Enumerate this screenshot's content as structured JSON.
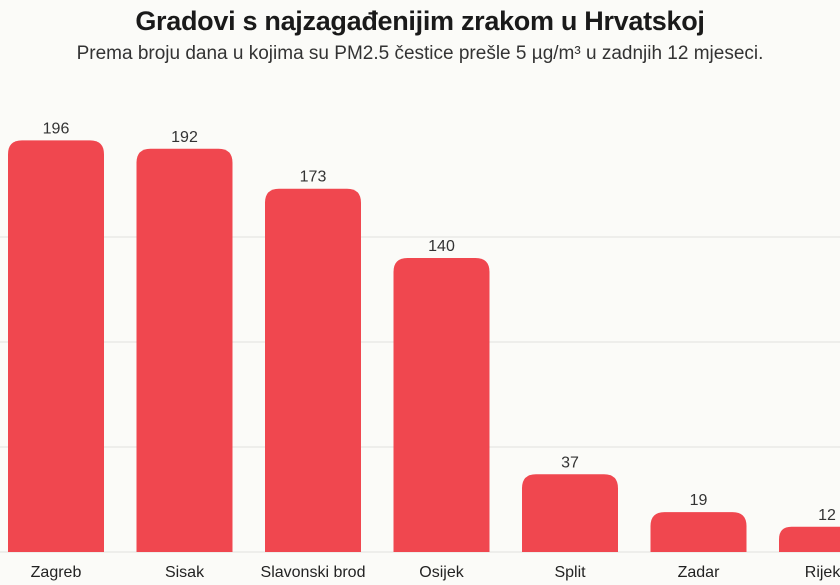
{
  "chart_data": {
    "type": "bar",
    "title": "Gradovi s najzagađenijim zrakom u Hrvatskoj",
    "subtitle": "Prema broju dana u kojima su PM2.5 čestice prešle 5 µg/m³ u zadnjih 12 mjeseci.",
    "categories": [
      "Zagreb",
      "Sisak",
      "Slavonski brod",
      "Osijek",
      "Split",
      "Zadar",
      "Rijeka"
    ],
    "values": [
      196,
      192,
      173,
      140,
      37,
      19,
      12
    ],
    "data_labels": [
      "196",
      "192",
      "173",
      "140",
      "37",
      "19",
      "12"
    ],
    "ylim": [
      0,
      200
    ],
    "grid": true,
    "bar_color": "#f0474f",
    "grid_color": "#e2e2de"
  }
}
